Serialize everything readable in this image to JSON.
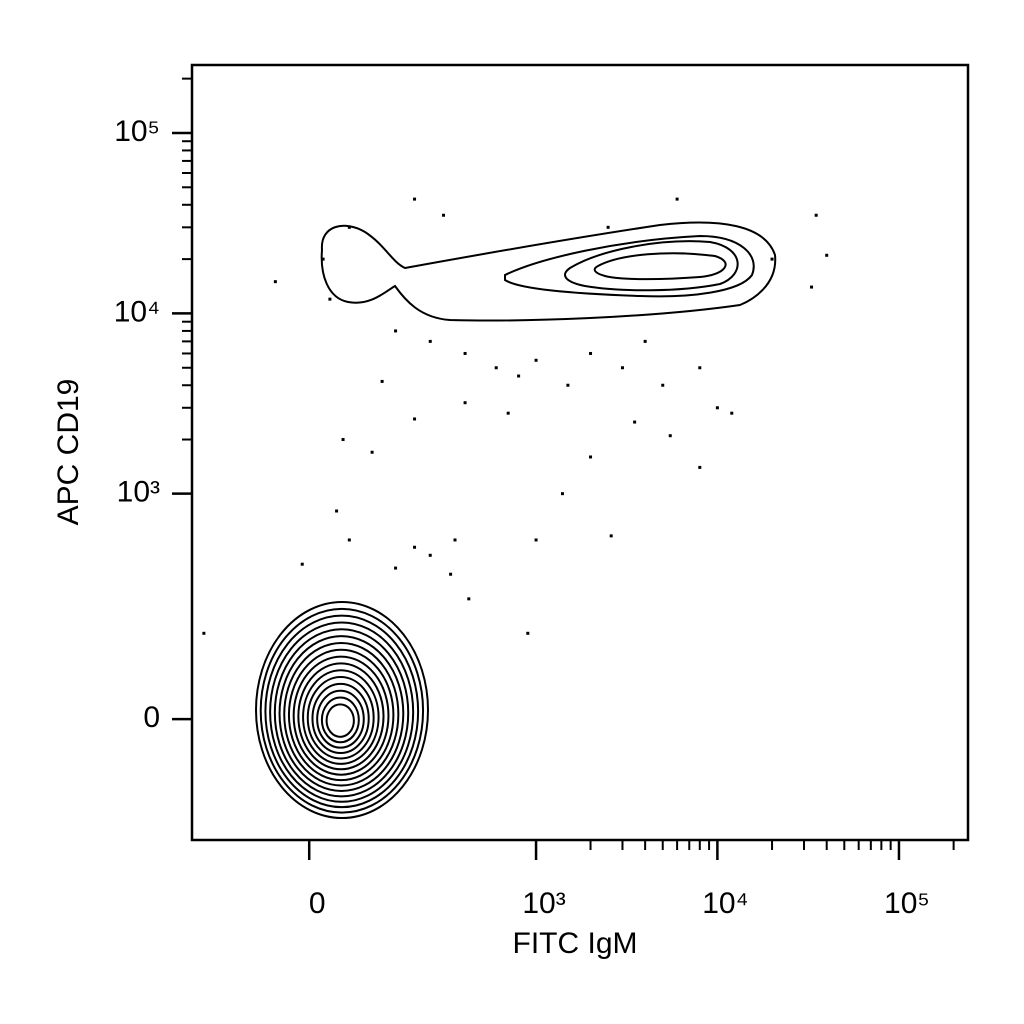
{
  "chart_data": {
    "type": "scatter",
    "x_label": "FITC IgM",
    "y_label": "APC CD19",
    "xlim": [
      -237,
      240000
    ],
    "ylim": [
      -252,
      238000
    ],
    "xticks": [
      0,
      {
        "value": 1000,
        "label": "10³"
      },
      {
        "value": 10000,
        "label": "10⁴"
      },
      {
        "value": 100000,
        "label": "10⁵"
      }
    ],
    "yticks": [
      0,
      {
        "value": 1000,
        "label": "10³"
      },
      {
        "value": 10000,
        "label": "10⁴"
      },
      {
        "value": 100000,
        "label": "10⁵"
      }
    ],
    "color": "#000000",
    "x": [
      20,
      -50,
      30,
      60,
      300,
      150,
      250,
      400,
      600,
      800,
      1000,
      1500,
      2000,
      3000,
      4000,
      5000,
      8000,
      10000,
      12000,
      3500,
      700,
      400,
      200,
      50,
      100,
      120,
      5500,
      2000,
      1400,
      8000,
      1000,
      2600,
      900,
      40,
      60,
      200,
      250,
      350,
      330,
      150,
      -10,
      420,
      -200,
      20000,
      35000,
      40000,
      33000,
      6000,
      200,
      2500
    ],
    "y": [
      20000,
      15000,
      12000,
      30000,
      35000,
      8000,
      7000,
      6000,
      5000,
      4500,
      5500,
      4000,
      6000,
      5000,
      7000,
      4000,
      5000,
      3000,
      2800,
      2500,
      2800,
      3200,
      2600,
      2000,
      1700,
      4200,
      2100,
      1600,
      1000,
      1400,
      550,
      580,
      150,
      800,
      550,
      500,
      450,
      550,
      350,
      380,
      400,
      250,
      150,
      20000,
      35000,
      21000,
      14000,
      43000,
      43000,
      30000
    ]
  }
}
